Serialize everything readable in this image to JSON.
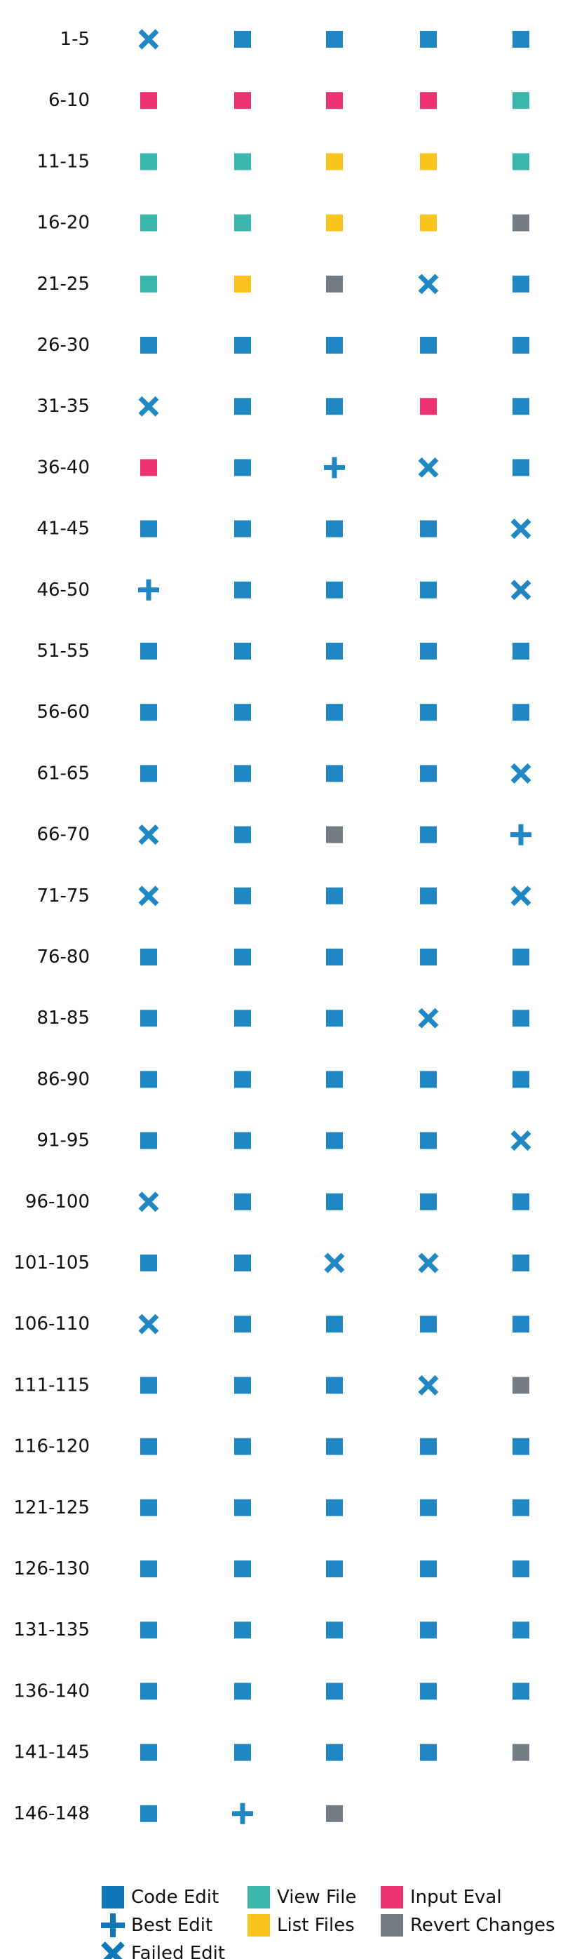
{
  "colors": {
    "code_edit": "#1f88c4",
    "view_file": "#3bb6ad",
    "list_files": "#fbc31e",
    "input_eval": "#ec336f",
    "revert_changes": "#737b84",
    "legend_code_edit": "#0d77b8"
  },
  "legend": {
    "items": [
      {
        "key": "code_edit",
        "label": "Code Edit",
        "icon": "square"
      },
      {
        "key": "best_edit",
        "label": "Best Edit",
        "icon": "plus"
      },
      {
        "key": "failed_edit",
        "label": "Failed Edit",
        "icon": "cross"
      },
      {
        "key": "view_file",
        "label": "View File",
        "icon": "square"
      },
      {
        "key": "list_files",
        "label": "List Files",
        "icon": "square"
      },
      {
        "key": "input_eval",
        "label": "Input Eval",
        "icon": "square"
      },
      {
        "key": "revert_changes",
        "label": "Revert Changes",
        "icon": "square"
      }
    ]
  },
  "chart_data": {
    "type": "grid",
    "title": "",
    "columns_per_row": 5,
    "action_codes": {
      "C": "Code Edit",
      "B": "Best Edit",
      "F": "Failed Edit",
      "V": "View File",
      "L": "List Files",
      "I": "Input Eval",
      "R": "Revert Changes"
    },
    "rows": [
      {
        "label": "1-5",
        "actions": [
          "F",
          "C",
          "C",
          "C",
          "C"
        ]
      },
      {
        "label": "6-10",
        "actions": [
          "I",
          "I",
          "I",
          "I",
          "V"
        ]
      },
      {
        "label": "11-15",
        "actions": [
          "V",
          "V",
          "L",
          "L",
          "V"
        ]
      },
      {
        "label": "16-20",
        "actions": [
          "V",
          "V",
          "L",
          "L",
          "R"
        ]
      },
      {
        "label": "21-25",
        "actions": [
          "V",
          "L",
          "R",
          "F",
          "C"
        ]
      },
      {
        "label": "26-30",
        "actions": [
          "C",
          "C",
          "C",
          "C",
          "C"
        ]
      },
      {
        "label": "31-35",
        "actions": [
          "F",
          "C",
          "C",
          "I",
          "C"
        ]
      },
      {
        "label": "36-40",
        "actions": [
          "I",
          "C",
          "B",
          "F",
          "C"
        ]
      },
      {
        "label": "41-45",
        "actions": [
          "C",
          "C",
          "C",
          "C",
          "F"
        ]
      },
      {
        "label": "46-50",
        "actions": [
          "B",
          "C",
          "C",
          "C",
          "F"
        ]
      },
      {
        "label": "51-55",
        "actions": [
          "C",
          "C",
          "C",
          "C",
          "C"
        ]
      },
      {
        "label": "56-60",
        "actions": [
          "C",
          "C",
          "C",
          "C",
          "C"
        ]
      },
      {
        "label": "61-65",
        "actions": [
          "C",
          "C",
          "C",
          "C",
          "F"
        ]
      },
      {
        "label": "66-70",
        "actions": [
          "F",
          "C",
          "R",
          "C",
          "B"
        ]
      },
      {
        "label": "71-75",
        "actions": [
          "F",
          "C",
          "C",
          "C",
          "F"
        ]
      },
      {
        "label": "76-80",
        "actions": [
          "C",
          "C",
          "C",
          "C",
          "C"
        ]
      },
      {
        "label": "81-85",
        "actions": [
          "C",
          "C",
          "C",
          "F",
          "C"
        ]
      },
      {
        "label": "86-90",
        "actions": [
          "C",
          "C",
          "C",
          "C",
          "C"
        ]
      },
      {
        "label": "91-95",
        "actions": [
          "C",
          "C",
          "C",
          "C",
          "F"
        ]
      },
      {
        "label": "96-100",
        "actions": [
          "F",
          "C",
          "C",
          "C",
          "C"
        ]
      },
      {
        "label": "101-105",
        "actions": [
          "C",
          "C",
          "F",
          "F",
          "C"
        ]
      },
      {
        "label": "106-110",
        "actions": [
          "F",
          "C",
          "C",
          "C",
          "C"
        ]
      },
      {
        "label": "111-115",
        "actions": [
          "C",
          "C",
          "C",
          "F",
          "R"
        ]
      },
      {
        "label": "116-120",
        "actions": [
          "C",
          "C",
          "C",
          "C",
          "C"
        ]
      },
      {
        "label": "121-125",
        "actions": [
          "C",
          "C",
          "C",
          "C",
          "C"
        ]
      },
      {
        "label": "126-130",
        "actions": [
          "C",
          "C",
          "C",
          "C",
          "C"
        ]
      },
      {
        "label": "131-135",
        "actions": [
          "C",
          "C",
          "C",
          "C",
          "C"
        ]
      },
      {
        "label": "136-140",
        "actions": [
          "C",
          "C",
          "C",
          "C",
          "C"
        ]
      },
      {
        "label": "141-145",
        "actions": [
          "C",
          "C",
          "C",
          "C",
          "R"
        ]
      },
      {
        "label": "146-148",
        "actions": [
          "C",
          "B",
          "R"
        ]
      }
    ]
  }
}
